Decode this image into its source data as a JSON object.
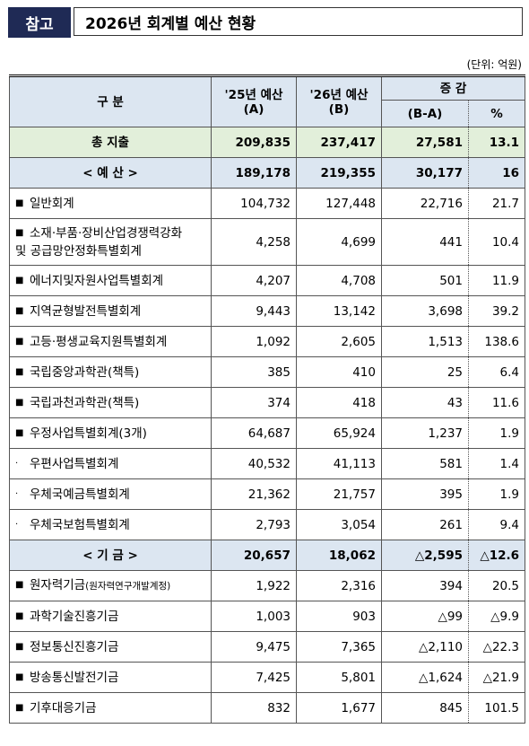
{
  "header": {
    "badge": "참고",
    "title": "2026년 회계별 예산 현황",
    "unit": "(단위: 억원)"
  },
  "table": {
    "columns": {
      "label": "구 분",
      "a": "'25년 예산",
      "a_sub": "(A)",
      "b": "'26년 예산",
      "b_sub": "(B)",
      "change": "증 감",
      "diff": "(B-A)",
      "pct": "%"
    },
    "total": {
      "label": "총 지출",
      "a": "209,835",
      "b": "237,417",
      "diff": "27,581",
      "pct": "13.1"
    },
    "rows": [
      {
        "label": "< 예 산 >",
        "a": "189,178",
        "b": "219,355",
        "diff": "30,177",
        "pct": "16"
      },
      {
        "marker": "■",
        "label": "일반회계",
        "a": "104,732",
        "b": "127,448",
        "diff": "22,716",
        "pct": "21.7"
      },
      {
        "marker": "■",
        "label": "소재·부품·장비산업경쟁력강화\n및 공급망안정화특별회계",
        "a": "4,258",
        "b": "4,699",
        "diff": "441",
        "pct": "10.4"
      },
      {
        "marker": "■",
        "label": "에너지및자원사업특별회계",
        "a": "4,207",
        "b": "4,708",
        "diff": "501",
        "pct": "11.9"
      },
      {
        "marker": "■",
        "label": "지역균형발전특별회계",
        "a": "9,443",
        "b": "13,142",
        "diff": "3,698",
        "pct": "39.2"
      },
      {
        "marker": "■",
        "label": "고등·평생교육지원특별회계",
        "a": "1,092",
        "b": "2,605",
        "diff": "1,513",
        "pct": "138.6"
      },
      {
        "marker": "■",
        "label": "국립중앙과학관(책특)",
        "a": "385",
        "b": "410",
        "diff": "25",
        "pct": "6.4"
      },
      {
        "marker": "■",
        "label": "국립과천과학관(책특)",
        "a": "374",
        "b": "418",
        "diff": "43",
        "pct": "11.6"
      },
      {
        "marker": "■",
        "label": "우정사업특별회계(3개)",
        "a": "64,687",
        "b": "65,924",
        "diff": "1,237",
        "pct": "1.9"
      },
      {
        "marker": "·",
        "label": "우편사업특별회계",
        "a": "40,532",
        "b": "41,113",
        "diff": "581",
        "pct": "1.4"
      },
      {
        "marker": "·",
        "label": "우체국예금특별회계",
        "a": "21,362",
        "b": "21,757",
        "diff": "395",
        "pct": "1.9"
      },
      {
        "marker": "·",
        "label": "우체국보험특별회계",
        "a": "2,793",
        "b": "3,054",
        "diff": "261",
        "pct": "9.4"
      },
      {
        "label": "< 기 금 >",
        "a": "20,657",
        "b": "18,062",
        "diff": "△2,595",
        "pct": "△12.6"
      },
      {
        "marker": "■",
        "label": "원자력기금",
        "note": "(원자력연구개발계정)",
        "a": "1,922",
        "b": "2,316",
        "diff": "394",
        "pct": "20.5"
      },
      {
        "marker": "■",
        "label": "과학기술진흥기금",
        "a": "1,003",
        "b": "903",
        "diff": "△99",
        "pct": "△9.9"
      },
      {
        "marker": "■",
        "label": "정보통신진흥기금",
        "a": "9,475",
        "b": "7,365",
        "diff": "△2,110",
        "pct": "△22.3"
      },
      {
        "marker": "■",
        "label": "방송통신발전기금",
        "a": "7,425",
        "b": "5,801",
        "diff": "△1,624",
        "pct": "△21.9"
      },
      {
        "marker": "■",
        "label": "기후대응기금",
        "a": "832",
        "b": "1,677",
        "diff": "845",
        "pct": "101.5"
      }
    ]
  }
}
